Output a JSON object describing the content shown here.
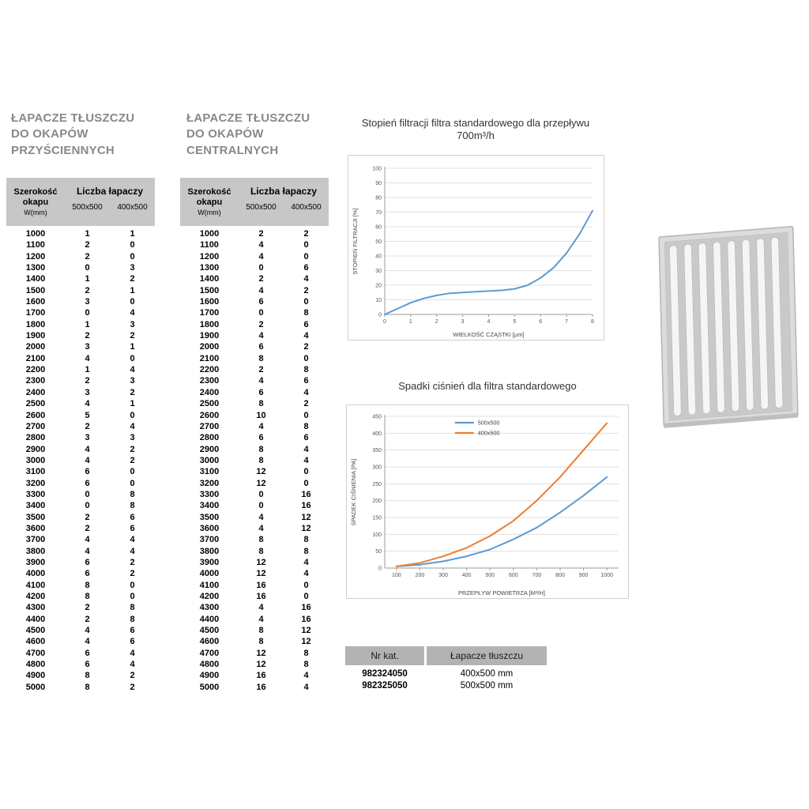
{
  "tables": [
    {
      "id": "wall",
      "title_lines": [
        "ŁAPACZE TŁUSZCZU",
        "DO OKAPÓW",
        "PRZYŚCIENNYCH"
      ],
      "header": {
        "col1_line1": "Szerokość",
        "col1_line2": "okapu",
        "col1_line3": "W(mm)",
        "col2": "Liczba łapaczy",
        "sub1": "500x500",
        "sub2": "400x500"
      },
      "rows": [
        [
          1000,
          1,
          1
        ],
        [
          1100,
          2,
          0
        ],
        [
          1200,
          2,
          0
        ],
        [
          1300,
          0,
          3
        ],
        [
          1400,
          1,
          2
        ],
        [
          1500,
          2,
          1
        ],
        [
          1600,
          3,
          0
        ],
        [
          1700,
          0,
          4
        ],
        [
          1800,
          1,
          3
        ],
        [
          1900,
          2,
          2
        ],
        [
          2000,
          3,
          1
        ],
        [
          2100,
          4,
          0
        ],
        [
          2200,
          1,
          4
        ],
        [
          2300,
          2,
          3
        ],
        [
          2400,
          3,
          2
        ],
        [
          2500,
          4,
          1
        ],
        [
          2600,
          5,
          0
        ],
        [
          2700,
          2,
          4
        ],
        [
          2800,
          3,
          3
        ],
        [
          2900,
          4,
          2
        ],
        [
          3000,
          4,
          2
        ],
        [
          3100,
          6,
          0
        ],
        [
          3200,
          6,
          0
        ],
        [
          3300,
          0,
          8
        ],
        [
          3400,
          0,
          8
        ],
        [
          3500,
          2,
          6
        ],
        [
          3600,
          2,
          6
        ],
        [
          3700,
          4,
          4
        ],
        [
          3800,
          4,
          4
        ],
        [
          3900,
          6,
          2
        ],
        [
          4000,
          6,
          2
        ],
        [
          4100,
          8,
          0
        ],
        [
          4200,
          8,
          0
        ],
        [
          4300,
          2,
          8
        ],
        [
          4400,
          2,
          8
        ],
        [
          4500,
          4,
          6
        ],
        [
          4600,
          4,
          6
        ],
        [
          4700,
          6,
          4
        ],
        [
          4800,
          6,
          4
        ],
        [
          4900,
          8,
          2
        ],
        [
          5000,
          8,
          2
        ]
      ]
    },
    {
      "id": "central",
      "title_lines": [
        "ŁAPACZE TŁUSZCZU",
        "DO OKAPÓW",
        "CENTRALNYCH"
      ],
      "header": {
        "col1_line1": "Szerokość",
        "col1_line2": "okapu",
        "col1_line3": "W(mm)",
        "col2": "Liczba łapaczy",
        "sub1": "500x500",
        "sub2": "400x500"
      },
      "rows": [
        [
          1000,
          2,
          2
        ],
        [
          1100,
          4,
          0
        ],
        [
          1200,
          4,
          0
        ],
        [
          1300,
          0,
          6
        ],
        [
          1400,
          2,
          4
        ],
        [
          1500,
          4,
          2
        ],
        [
          1600,
          6,
          0
        ],
        [
          1700,
          0,
          8
        ],
        [
          1800,
          2,
          6
        ],
        [
          1900,
          4,
          4
        ],
        [
          2000,
          6,
          2
        ],
        [
          2100,
          8,
          0
        ],
        [
          2200,
          2,
          8
        ],
        [
          2300,
          4,
          6
        ],
        [
          2400,
          6,
          4
        ],
        [
          2500,
          8,
          2
        ],
        [
          2600,
          10,
          0
        ],
        [
          2700,
          4,
          8
        ],
        [
          2800,
          6,
          6
        ],
        [
          2900,
          8,
          4
        ],
        [
          3000,
          8,
          4
        ],
        [
          3100,
          12,
          0
        ],
        [
          3200,
          12,
          0
        ],
        [
          3300,
          0,
          16
        ],
        [
          3400,
          0,
          16
        ],
        [
          3500,
          4,
          12
        ],
        [
          3600,
          4,
          12
        ],
        [
          3700,
          8,
          8
        ],
        [
          3800,
          8,
          8
        ],
        [
          3900,
          12,
          4
        ],
        [
          4000,
          12,
          4
        ],
        [
          4100,
          16,
          0
        ],
        [
          4200,
          16,
          0
        ],
        [
          4300,
          4,
          16
        ],
        [
          4400,
          4,
          16
        ],
        [
          4500,
          8,
          12
        ],
        [
          4600,
          8,
          12
        ],
        [
          4700,
          12,
          8
        ],
        [
          4800,
          12,
          8
        ],
        [
          4900,
          16,
          4
        ],
        [
          5000,
          16,
          4
        ]
      ]
    }
  ],
  "chart_data": [
    {
      "type": "line",
      "title": "Stopień filtracji filtra standardowego dla przepływu 700m³/h",
      "xlabel": "WIELKOŚĆ CZĄSTKI [µm]",
      "ylabel": "STOPIEŃ FILTRACJI [%]",
      "xlim": [
        0,
        8
      ],
      "ylim": [
        0,
        100
      ],
      "xticks": [
        0,
        1,
        2,
        3,
        4,
        5,
        6,
        7,
        8
      ],
      "yticks": [
        0,
        10,
        20,
        30,
        40,
        50,
        60,
        70,
        80,
        90,
        100
      ],
      "grid": true,
      "legend": false,
      "series": [
        {
          "name": "stopień filtracji",
          "color": "#5b9bd5",
          "x": [
            0,
            0.5,
            1,
            1.5,
            2,
            2.5,
            3,
            3.5,
            4,
            4.5,
            5,
            5.5,
            6,
            6.5,
            7,
            7.5,
            8
          ],
          "y": [
            0,
            4,
            8,
            11,
            13,
            14.5,
            15,
            15.5,
            16,
            16.5,
            17.5,
            20,
            25,
            32,
            42,
            55,
            71
          ]
        }
      ]
    },
    {
      "type": "line",
      "title": "Spadki ciśnień dla filtra standardowego",
      "xlabel": "PRZEPŁYW POWIETRZA [M³/H]",
      "ylabel": "SPADEK CIŚNIENIA [PA]",
      "xlim": [
        50,
        1050
      ],
      "ylim": [
        0,
        450
      ],
      "xticks": [
        100,
        200,
        300,
        400,
        500,
        600,
        700,
        800,
        900,
        1000
      ],
      "yticks": [
        0,
        50,
        100,
        150,
        200,
        250,
        300,
        350,
        400,
        450
      ],
      "grid": true,
      "legend": true,
      "series": [
        {
          "name": "500x500",
          "color": "#5b9bd5",
          "x": [
            100,
            200,
            300,
            400,
            500,
            600,
            700,
            800,
            900,
            1000
          ],
          "y": [
            5,
            10,
            20,
            35,
            55,
            85,
            120,
            165,
            215,
            270
          ]
        },
        {
          "name": "400x500",
          "color": "#ed7d31",
          "x": [
            100,
            200,
            300,
            400,
            500,
            600,
            700,
            800,
            900,
            1000
          ],
          "y": [
            5,
            15,
            35,
            60,
            95,
            140,
            200,
            270,
            350,
            430
          ]
        }
      ]
    }
  ],
  "catalog_table": {
    "headers": [
      "Nr kat.",
      "Łapacze tłuszczu"
    ],
    "rows": [
      [
        "982324050",
        "400x500 mm"
      ],
      [
        "982325050",
        "500x500 mm"
      ]
    ]
  },
  "product_image": {
    "name": "grease-filter-photo"
  }
}
